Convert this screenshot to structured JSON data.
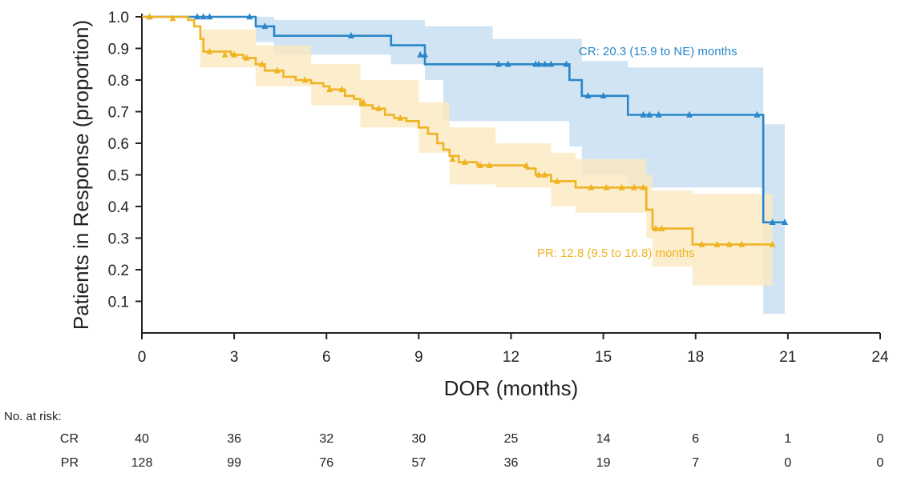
{
  "chart_data": {
    "type": "line",
    "subtype": "kaplan-meier",
    "ylabel": "Patients in Response (proportion)",
    "xlabel": "DOR (months)",
    "xlim": [
      0,
      24
    ],
    "ylim": [
      0,
      1.0
    ],
    "x_ticks": [
      "0",
      "3",
      "6",
      "9",
      "12",
      "15",
      "18",
      "21",
      "24"
    ],
    "y_ticks": [
      "0.1",
      "0.2",
      "0.3",
      "0.4",
      "0.5",
      "0.6",
      "0.7",
      "0.8",
      "0.9",
      "1.0"
    ],
    "grid": false,
    "series": [
      {
        "name": "CR",
        "color": "#2a86c8",
        "band_color": "#c4ddf1",
        "label": "CR: 20.3 (15.9 to NE) months",
        "steps": [
          [
            0,
            1.0
          ],
          [
            3.7,
            0.97
          ],
          [
            4.3,
            0.94
          ],
          [
            8.1,
            0.91
          ],
          [
            9.2,
            0.85
          ],
          [
            13.9,
            0.8
          ],
          [
            14.3,
            0.75
          ],
          [
            15.8,
            0.69
          ],
          [
            20.2,
            0.35
          ],
          [
            20.9,
            0.35
          ]
        ],
        "censored": [
          [
            0.25,
            1.0
          ],
          [
            1.8,
            1.0
          ],
          [
            2.0,
            1.0
          ],
          [
            2.2,
            1.0
          ],
          [
            3.5,
            1.0
          ],
          [
            4.0,
            0.97
          ],
          [
            6.8,
            0.94
          ],
          [
            9.05,
            0.88
          ],
          [
            9.2,
            0.88
          ],
          [
            11.6,
            0.85
          ],
          [
            11.9,
            0.85
          ],
          [
            12.8,
            0.85
          ],
          [
            12.9,
            0.85
          ],
          [
            13.1,
            0.85
          ],
          [
            13.3,
            0.85
          ],
          [
            13.8,
            0.85
          ],
          [
            14.5,
            0.75
          ],
          [
            15.0,
            0.75
          ],
          [
            16.3,
            0.69
          ],
          [
            16.5,
            0.69
          ],
          [
            16.8,
            0.69
          ],
          [
            17.8,
            0.69
          ],
          [
            20.0,
            0.69
          ],
          [
            20.5,
            0.35
          ],
          [
            20.9,
            0.35
          ]
        ],
        "ci_band": [
          [
            0,
            1.0,
            1.0
          ],
          [
            3.7,
            0.92,
            1.0
          ],
          [
            4.3,
            0.88,
            0.99
          ],
          [
            8.1,
            0.85,
            0.99
          ],
          [
            9.2,
            0.8,
            0.97
          ],
          [
            9.8,
            0.67,
            0.97
          ],
          [
            11.4,
            0.67,
            0.93
          ],
          [
            13.9,
            0.59,
            0.93
          ],
          [
            14.3,
            0.5,
            0.86
          ],
          [
            15.8,
            0.46,
            0.84
          ],
          [
            20.2,
            0.06,
            0.66
          ],
          [
            20.9,
            0.06,
            0.66
          ]
        ]
      },
      {
        "name": "PR",
        "color": "#f0b323",
        "band_color": "#fbe9bf",
        "label": "PR: 12.8 (9.5 to 16.8) months",
        "steps": [
          [
            0,
            1.0
          ],
          [
            1.5,
            0.99
          ],
          [
            1.7,
            0.97
          ],
          [
            1.9,
            0.93
          ],
          [
            2.0,
            0.89
          ],
          [
            2.9,
            0.88
          ],
          [
            3.3,
            0.87
          ],
          [
            3.7,
            0.85
          ],
          [
            4.0,
            0.83
          ],
          [
            4.6,
            0.81
          ],
          [
            5.0,
            0.8
          ],
          [
            5.5,
            0.79
          ],
          [
            5.9,
            0.78
          ],
          [
            6.1,
            0.77
          ],
          [
            6.6,
            0.75
          ],
          [
            6.9,
            0.74
          ],
          [
            7.1,
            0.72
          ],
          [
            7.5,
            0.71
          ],
          [
            7.9,
            0.69
          ],
          [
            8.2,
            0.68
          ],
          [
            8.6,
            0.67
          ],
          [
            9.0,
            0.65
          ],
          [
            9.3,
            0.63
          ],
          [
            9.6,
            0.6
          ],
          [
            9.8,
            0.58
          ],
          [
            10.0,
            0.56
          ],
          [
            10.3,
            0.54
          ],
          [
            10.9,
            0.53
          ],
          [
            12.5,
            0.52
          ],
          [
            12.8,
            0.5
          ],
          [
            13.3,
            0.48
          ],
          [
            14.1,
            0.46
          ],
          [
            16.4,
            0.39
          ],
          [
            16.6,
            0.33
          ],
          [
            17.9,
            0.28
          ],
          [
            20.5,
            0.28
          ]
        ],
        "censored": [
          [
            0.25,
            1.0
          ],
          [
            1.0,
            0.995
          ],
          [
            2.2,
            0.89
          ],
          [
            2.7,
            0.88
          ],
          [
            3.0,
            0.88
          ],
          [
            3.4,
            0.87
          ],
          [
            3.9,
            0.85
          ],
          [
            4.4,
            0.83
          ],
          [
            5.3,
            0.8
          ],
          [
            6.1,
            0.77
          ],
          [
            6.5,
            0.77
          ],
          [
            7.2,
            0.73
          ],
          [
            7.7,
            0.71
          ],
          [
            8.4,
            0.68
          ],
          [
            10.1,
            0.55
          ],
          [
            10.5,
            0.54
          ],
          [
            11.0,
            0.53
          ],
          [
            11.3,
            0.53
          ],
          [
            12.5,
            0.53
          ],
          [
            12.9,
            0.5
          ],
          [
            13.1,
            0.5
          ],
          [
            13.5,
            0.48
          ],
          [
            14.6,
            0.46
          ],
          [
            15.1,
            0.46
          ],
          [
            15.6,
            0.46
          ],
          [
            16.0,
            0.46
          ],
          [
            16.3,
            0.46
          ],
          [
            16.7,
            0.33
          ],
          [
            16.9,
            0.33
          ],
          [
            18.2,
            0.28
          ],
          [
            18.7,
            0.28
          ],
          [
            19.1,
            0.28
          ],
          [
            19.5,
            0.28
          ],
          [
            20.5,
            0.28
          ]
        ],
        "ci_band": [
          [
            0,
            1.0,
            1.0
          ],
          [
            1.9,
            0.84,
            0.96
          ],
          [
            3.7,
            0.78,
            0.91
          ],
          [
            5.5,
            0.72,
            0.85
          ],
          [
            7.1,
            0.65,
            0.8
          ],
          [
            9.0,
            0.57,
            0.73
          ],
          [
            10.0,
            0.47,
            0.65
          ],
          [
            11.5,
            0.46,
            0.6
          ],
          [
            13.3,
            0.4,
            0.57
          ],
          [
            14.1,
            0.38,
            0.55
          ],
          [
            16.4,
            0.3,
            0.5
          ],
          [
            16.6,
            0.21,
            0.45
          ],
          [
            17.9,
            0.15,
            0.44
          ],
          [
            20.5,
            0.15,
            0.44
          ]
        ]
      }
    ],
    "risk_table": {
      "title": "No. at risk:",
      "times": [
        "0",
        "3",
        "6",
        "9",
        "12",
        "15",
        "18",
        "21",
        "24"
      ],
      "rows": [
        {
          "label": "CR",
          "values": [
            "40",
            "36",
            "32",
            "30",
            "25",
            "14",
            "6",
            "1",
            "0"
          ]
        },
        {
          "label": "PR",
          "values": [
            "128",
            "99",
            "76",
            "57",
            "36",
            "19",
            "7",
            "0",
            "0"
          ]
        }
      ]
    }
  }
}
